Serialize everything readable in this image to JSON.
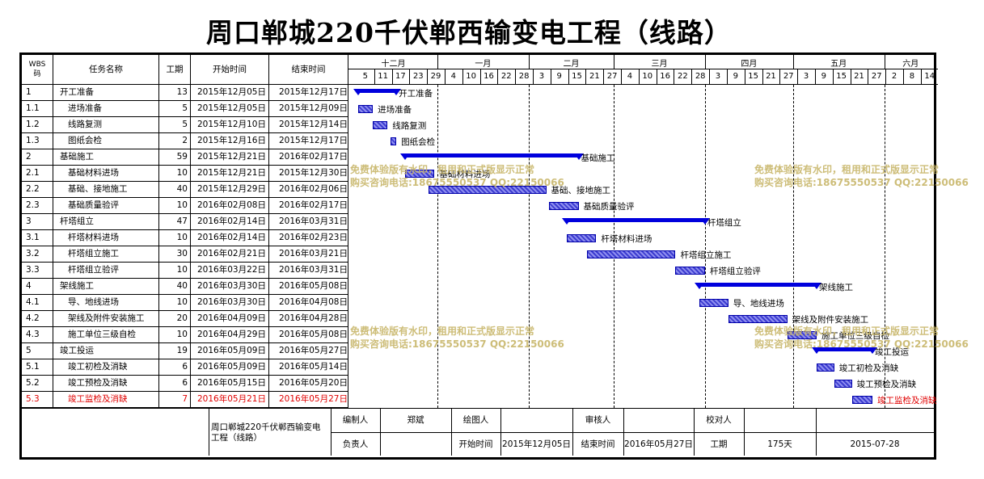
{
  "title": "周口郸城220千伏郸西输变电工程（线路）",
  "headers": {
    "wbs": "WBS\n码",
    "name": "任务名称",
    "duration": "工期",
    "start": "开始时间",
    "end": "结束时间"
  },
  "months": [
    "十二月",
    "一月",
    "二月",
    "三月",
    "四月",
    "五月",
    "六月"
  ],
  "days": [
    "5",
    "11",
    "17",
    "23",
    "29",
    "4",
    "10",
    "16",
    "22",
    "28",
    "3",
    "9",
    "15",
    "21",
    "27",
    "4",
    "10",
    "16",
    "22",
    "28",
    "3",
    "9",
    "15",
    "21",
    "27",
    "3",
    "9",
    "15",
    "21",
    "27",
    "2",
    "8",
    "14"
  ],
  "chart_data": {
    "type": "gantt",
    "title": "周口郸城220千伏郸西输变电工程（线路）",
    "x_axis": {
      "type": "date",
      "range": [
        "2015-12-05",
        "2016-06-19"
      ]
    },
    "tasks": [
      {
        "wbs": "1",
        "name": "开工准备",
        "duration": "13",
        "start": "2015年12月05日",
        "end": "2015年12月17日",
        "s": "2015-12-05",
        "e": "2015-12-17",
        "summary": true,
        "label": "开工准备",
        "level": 0
      },
      {
        "wbs": "1.1",
        "name": "进场准备",
        "duration": "5",
        "start": "2015年12月05日",
        "end": "2015年12月09日",
        "s": "2015-12-05",
        "e": "2015-12-09",
        "label": "进场准备",
        "level": 1
      },
      {
        "wbs": "1.2",
        "name": "线路复测",
        "duration": "5",
        "start": "2015年12月10日",
        "end": "2015年12月14日",
        "s": "2015-12-10",
        "e": "2015-12-14",
        "label": "线路复测",
        "level": 1
      },
      {
        "wbs": "1.3",
        "name": "图纸会检",
        "duration": "2",
        "start": "2015年12月16日",
        "end": "2015年12月17日",
        "s": "2015-12-16",
        "e": "2015-12-17",
        "label": "图纸会检",
        "level": 1
      },
      {
        "wbs": "2",
        "name": "基础施工",
        "duration": "59",
        "start": "2015年12月21日",
        "end": "2016年02月17日",
        "s": "2015-12-21",
        "e": "2016-02-17",
        "summary": true,
        "label": "基础施工",
        "level": 0
      },
      {
        "wbs": "2.1",
        "name": "基础材料进场",
        "duration": "10",
        "start": "2015年12月21日",
        "end": "2015年12月30日",
        "s": "2015-12-21",
        "e": "2015-12-30",
        "label": "基础材料进场",
        "level": 1
      },
      {
        "wbs": "2.2",
        "name": "基础、接地施工",
        "duration": "40",
        "start": "2015年12月29日",
        "end": "2016年02月06日",
        "s": "2015-12-29",
        "e": "2016-02-06",
        "label": "基础、接地施工",
        "level": 1
      },
      {
        "wbs": "2.3",
        "name": "基础质量验评",
        "duration": "10",
        "start": "2016年02月08日",
        "end": "2016年02月17日",
        "s": "2016-02-08",
        "e": "2016-02-17",
        "label": "基础质量验评",
        "level": 1
      },
      {
        "wbs": "3",
        "name": "杆塔组立",
        "duration": "47",
        "start": "2016年02月14日",
        "end": "2016年03月31日",
        "s": "2016-02-14",
        "e": "2016-03-31",
        "summary": true,
        "label": "杆塔组立",
        "level": 0
      },
      {
        "wbs": "3.1",
        "name": "杆塔材料进场",
        "duration": "10",
        "start": "2016年02月14日",
        "end": "2016年02月23日",
        "s": "2016-02-14",
        "e": "2016-02-23",
        "label": "杆塔材料进场",
        "level": 1
      },
      {
        "wbs": "3.2",
        "name": "杆塔组立施工",
        "duration": "30",
        "start": "2016年02月21日",
        "end": "2016年03月21日",
        "s": "2016-02-21",
        "e": "2016-03-21",
        "label": "杆塔组立施工",
        "level": 1
      },
      {
        "wbs": "3.3",
        "name": "杆塔组立验评",
        "duration": "10",
        "start": "2016年03月22日",
        "end": "2016年03月31日",
        "s": "2016-03-22",
        "e": "2016-03-31",
        "label": "杆塔组立验评",
        "level": 1
      },
      {
        "wbs": "4",
        "name": "架线施工",
        "duration": "40",
        "start": "2016年03月30日",
        "end": "2016年05月08日",
        "s": "2016-03-30",
        "e": "2016-05-08",
        "summary": true,
        "label": "架线施工",
        "level": 0
      },
      {
        "wbs": "4.1",
        "name": "导、地线进场",
        "duration": "10",
        "start": "2016年03月30日",
        "end": "2016年04月08日",
        "s": "2016-03-30",
        "e": "2016-04-08",
        "label": "导、地线进场",
        "level": 1
      },
      {
        "wbs": "4.2",
        "name": "架线及附件安装施工",
        "duration": "20",
        "start": "2016年04月09日",
        "end": "2016年04月28日",
        "s": "2016-04-09",
        "e": "2016-04-28",
        "label": "架线及附件安装施工",
        "level": 1
      },
      {
        "wbs": "4.3",
        "name": "施工单位三级自检",
        "duration": "10",
        "start": "2016年04月29日",
        "end": "2016年05月08日",
        "s": "2016-04-29",
        "e": "2016-05-08",
        "label": "施工单位三级自检",
        "level": 1
      },
      {
        "wbs": "5",
        "name": "竣工投运",
        "duration": "19",
        "start": "2016年05月09日",
        "end": "2016年05月27日",
        "s": "2016-05-09",
        "e": "2016-05-27",
        "summary": true,
        "label": "竣工投运",
        "level": 0
      },
      {
        "wbs": "5.1",
        "name": "竣工初检及消缺",
        "duration": "6",
        "start": "2016年05月09日",
        "end": "2016年05月14日",
        "s": "2016-05-09",
        "e": "2016-05-14",
        "label": "竣工初检及消缺",
        "level": 1
      },
      {
        "wbs": "5.2",
        "name": "竣工预检及消缺",
        "duration": "6",
        "start": "2016年05月15日",
        "end": "2016年05月20日",
        "s": "2016-05-15",
        "e": "2016-05-20",
        "label": "竣工预检及消缺",
        "level": 1
      },
      {
        "wbs": "5.3",
        "name": "竣工监检及消缺",
        "duration": "7",
        "start": "2016年05月21日",
        "end": "2016年05月27日",
        "s": "2016-05-21",
        "e": "2016-05-27",
        "label": "竣工监检及消缺",
        "level": 1,
        "highlight": "#e00000"
      }
    ]
  },
  "footer": {
    "project": "周口郸城220千伏郸西输变电工程（线路）",
    "editor_label": "编制人",
    "editor": "郑斌",
    "drawer_label": "绘图人",
    "drawer": "",
    "reviewer_label": "审核人",
    "reviewer": "",
    "checker_label": "校对人",
    "checker": "",
    "owner_label": "负责人",
    "owner": "",
    "start_label": "开始时间",
    "start": "2015年12月05日",
    "end_label": "结束时间",
    "end": "2016年05月27日",
    "duration_label": "工期",
    "duration": "175天",
    "date": "2015-07-28"
  },
  "watermark": {
    "line1": "免费体验版有水印，租用和正式版显示正常",
    "line2": "购买咨询电话:18675550537 QQ:22150066",
    "color": "#c8b66a"
  },
  "colors": {
    "bar": "#0000dd",
    "highlight": "#e00000"
  }
}
